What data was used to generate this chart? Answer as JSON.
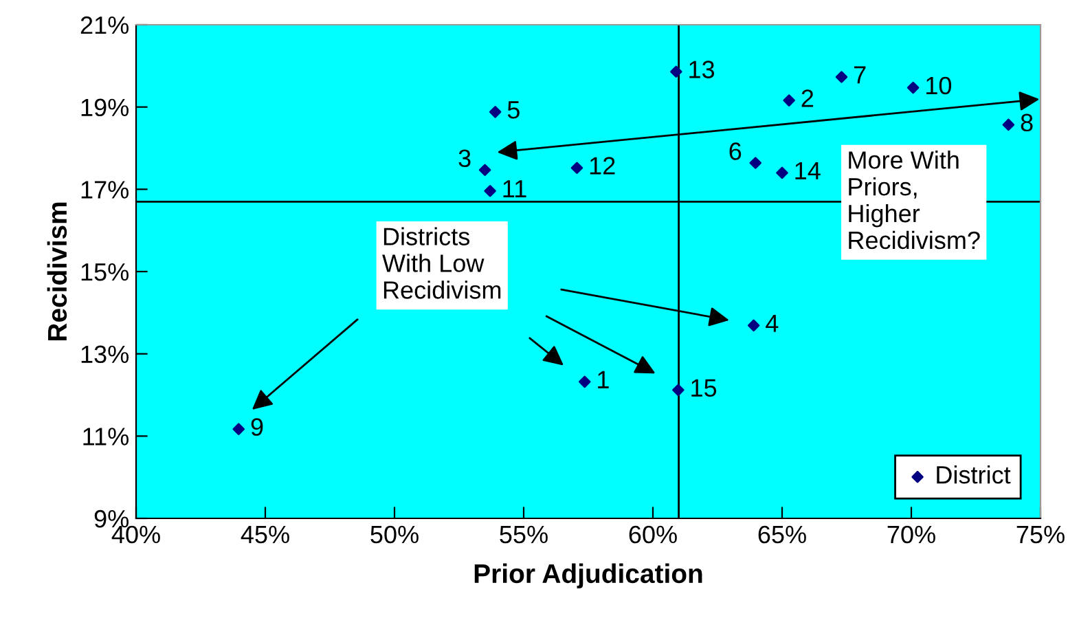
{
  "chart_data": {
    "type": "scatter",
    "xlabel": "Prior Adjudication",
    "ylabel": "Recidivism",
    "series": [
      {
        "name": "District",
        "color": "#000080",
        "x": [
          57.36,
          65.27,
          53.5,
          63.9,
          53.9,
          63.97,
          67.3,
          73.76,
          43.97,
          70.07,
          53.7,
          57.06,
          60.9,
          65.0,
          60.98
        ],
        "values": [
          12.32,
          19.16,
          17.47,
          13.69,
          18.88,
          17.64,
          19.73,
          18.57,
          11.17,
          19.47,
          16.96,
          17.52,
          19.86,
          17.4,
          12.12
        ]
      }
    ],
    "marker": "diamond",
    "grid": false,
    "legend": "bottom right",
    "xlim": [
      40,
      75
    ],
    "ylim": [
      9,
      21
    ],
    "xticks": [
      {
        "value": 40,
        "label": "40%"
      },
      {
        "value": 45,
        "label": "45%"
      },
      {
        "value": 50,
        "label": "50%"
      },
      {
        "value": 55,
        "label": "55%"
      },
      {
        "value": 60,
        "label": "60%"
      },
      {
        "value": 65,
        "label": "65%"
      },
      {
        "value": 70,
        "label": "70%"
      },
      {
        "value": 75,
        "label": "75%"
      }
    ],
    "yticks": [
      {
        "value": 9,
        "label": "9%"
      },
      {
        "value": 11,
        "label": "11%"
      },
      {
        "value": 13,
        "label": "13%"
      },
      {
        "value": 15,
        "label": "15%"
      },
      {
        "value": 17,
        "label": "17%"
      },
      {
        "value": 19,
        "label": "19%"
      },
      {
        "value": 21,
        "label": "21%"
      }
    ],
    "ref_lines": [
      {
        "axis": "x",
        "value": 61.0,
        "color": "#000000"
      },
      {
        "axis": "y",
        "value": 16.7,
        "color": "#000000"
      }
    ],
    "annotations": [
      {
        "text": "1",
        "x": 57.36,
        "y": 12.32
      },
      {
        "text": "2",
        "x": 65.27,
        "y": 19.16
      },
      {
        "text": "3",
        "x": 53.5,
        "y": 17.47
      },
      {
        "text": "4",
        "x": 63.9,
        "y": 13.69
      },
      {
        "text": "5",
        "x": 53.9,
        "y": 18.88
      },
      {
        "text": "6",
        "x": 63.97,
        "y": 17.64
      },
      {
        "text": "7",
        "x": 67.3,
        "y": 19.73
      },
      {
        "text": "8",
        "x": 73.76,
        "y": 18.57
      },
      {
        "text": "9",
        "x": 43.97,
        "y": 11.17
      },
      {
        "text": "10",
        "x": 70.07,
        "y": 19.47
      },
      {
        "text": "11",
        "x": 53.7,
        "y": 16.96
      },
      {
        "text": "12",
        "x": 57.06,
        "y": 17.52
      },
      {
        "text": "13",
        "x": 60.9,
        "y": 19.86
      },
      {
        "text": "14",
        "x": 65.0,
        "y": 17.4
      },
      {
        "text": "15",
        "x": 60.98,
        "y": 12.12
      },
      "Districts\nWith Low\nRecidivism",
      "More With\nPriors,\nHigher\nRecidivism?"
    ]
  }
}
